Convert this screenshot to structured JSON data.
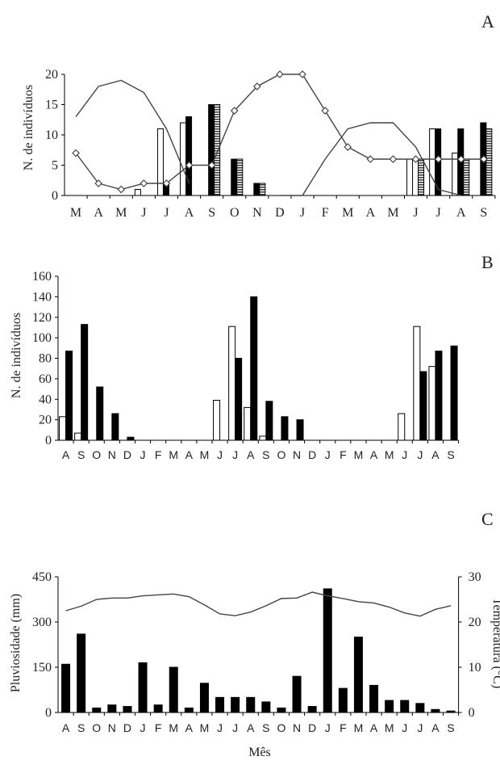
{
  "chart_data": [
    {
      "panel": "A",
      "type": "bar",
      "ylabel": "N. de indivíduos",
      "ylim": [
        0,
        20
      ],
      "yticks": [
        "0",
        "5",
        "10",
        "15",
        "20"
      ],
      "categories": [
        "M",
        "A",
        "M",
        "J",
        "J",
        "A",
        "S",
        "O",
        "N",
        "D",
        "J",
        "F",
        "M",
        "A",
        "M",
        "J",
        "J",
        "A",
        "S"
      ],
      "series": [
        {
          "style": "white-bar",
          "values": [
            null,
            null,
            null,
            1,
            11,
            12,
            null,
            null,
            null,
            null,
            null,
            null,
            null,
            null,
            null,
            6,
            11,
            7,
            null
          ]
        },
        {
          "style": "black-bar",
          "values": [
            null,
            null,
            null,
            null,
            2,
            13,
            15,
            6,
            2,
            null,
            null,
            null,
            null,
            null,
            null,
            null,
            11,
            11,
            12
          ]
        },
        {
          "style": "hatched-bar",
          "values": [
            null,
            null,
            null,
            null,
            null,
            null,
            15,
            6,
            2,
            null,
            null,
            null,
            null,
            null,
            null,
            6,
            null,
            6,
            11
          ]
        },
        {
          "style": "line",
          "values": [
            13,
            18,
            19,
            17,
            11,
            2,
            null,
            null,
            null,
            0,
            0,
            6,
            11,
            12,
            12,
            8,
            1,
            0,
            null
          ]
        },
        {
          "style": "line-diamond",
          "values": [
            7,
            2,
            1,
            2,
            2,
            5,
            5,
            14,
            18,
            20,
            20,
            14,
            8,
            6,
            6,
            6,
            6,
            6,
            6
          ]
        }
      ]
    },
    {
      "panel": "B",
      "type": "bar",
      "ylabel": "N. de indivíduos",
      "ylim": [
        0,
        160
      ],
      "yticks": [
        "0",
        "20",
        "40",
        "60",
        "80",
        "100",
        "120",
        "140",
        "160"
      ],
      "categories": [
        "A",
        "S",
        "O",
        "N",
        "D",
        "J",
        "F",
        "M",
        "A",
        "M",
        "J",
        "J",
        "A",
        "S",
        "O",
        "N",
        "D",
        "J",
        "F",
        "M",
        "A",
        "M",
        "J",
        "J",
        "A",
        "S"
      ],
      "series": [
        {
          "style": "white-bar",
          "values": [
            23,
            7,
            null,
            null,
            null,
            null,
            null,
            null,
            null,
            null,
            39,
            111,
            32,
            4,
            null,
            null,
            null,
            null,
            null,
            null,
            null,
            null,
            26,
            111,
            72,
            null
          ]
        },
        {
          "style": "black-bar",
          "values": [
            87,
            113,
            52,
            26,
            3,
            null,
            null,
            null,
            null,
            null,
            null,
            80,
            140,
            38,
            23,
            20,
            null,
            null,
            null,
            null,
            null,
            null,
            null,
            67,
            87,
            92
          ]
        }
      ]
    },
    {
      "panel": "C",
      "type": "bar",
      "xlabel": "Mês",
      "ylabel": "Pluviosidade (mm)",
      "y2label": "Temperatura (°C)",
      "ylim": [
        0,
        450
      ],
      "y2lim": [
        0,
        30
      ],
      "yticks": [
        "0",
        "150",
        "300",
        "450"
      ],
      "y2ticks": [
        "0",
        "10",
        "20",
        "30"
      ],
      "categories": [
        "A",
        "S",
        "O",
        "N",
        "D",
        "J",
        "F",
        "M",
        "A",
        "M",
        "J",
        "J",
        "A",
        "S",
        "O",
        "N",
        "D",
        "J",
        "F",
        "M",
        "A",
        "M",
        "J",
        "J",
        "A",
        "S"
      ],
      "series": [
        {
          "name": "Pluviosidade",
          "axis": "left",
          "style": "black-bar",
          "values": [
            160,
            260,
            15,
            25,
            20,
            165,
            25,
            150,
            15,
            97,
            50,
            50,
            50,
            35,
            15,
            120,
            20,
            410,
            80,
            250,
            90,
            40,
            40,
            30,
            10,
            5
          ]
        },
        {
          "name": "Temperatura",
          "axis": "right",
          "style": "line",
          "values": [
            22.5,
            23.5,
            25,
            25.3,
            25.3,
            25.8,
            26,
            26.2,
            25.6,
            23.8,
            21.8,
            21.4,
            22.2,
            23.6,
            25.2,
            25.3,
            26.6,
            25.8,
            25.2,
            24.5,
            24.2,
            23.3,
            22,
            21.3,
            22.8,
            23.6
          ]
        }
      ]
    }
  ]
}
